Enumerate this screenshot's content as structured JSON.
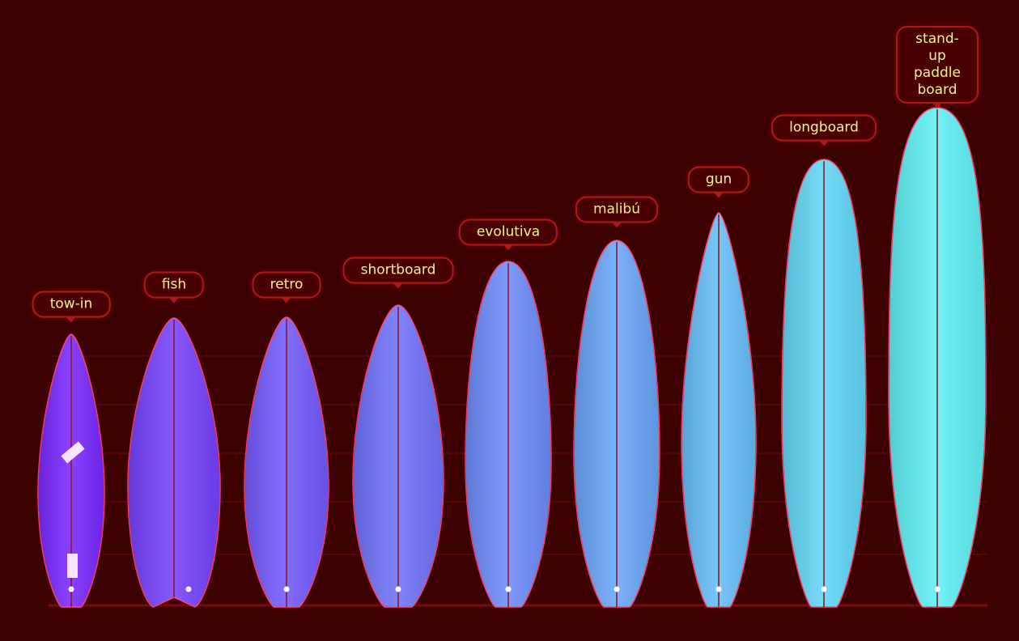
{
  "boards": [
    {
      "label": "tow-in"
    },
    {
      "label": "fish"
    },
    {
      "label": "retro"
    },
    {
      "label": "shortboard"
    },
    {
      "label": "evolutiva"
    },
    {
      "label": "malibú"
    },
    {
      "label": "gun"
    },
    {
      "label": "longboard"
    },
    {
      "label": "stand-up paddle board"
    }
  ]
}
